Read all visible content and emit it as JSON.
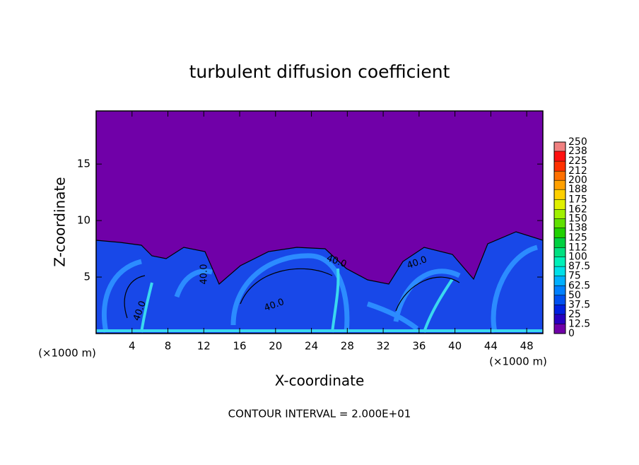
{
  "chart_data": {
    "type": "contour",
    "title": "turbulent diffusion coefficient",
    "xlabel": "X-coordinate",
    "ylabel": "Z-coordinate",
    "x_unit_left": "(×1000 m)",
    "x_unit_right": "(×1000 m)",
    "footer": "CONTOUR INTERVAL = 2.000E+01",
    "xlim": [
      0,
      49.8
    ],
    "xticks": [
      4,
      8,
      12,
      16,
      20,
      24,
      28,
      32,
      36,
      40,
      44,
      48
    ],
    "ylim": [
      0,
      19.7
    ],
    "yticks": [
      5,
      10,
      15
    ],
    "contour_labels": [
      "40.0",
      "40.0",
      "40.0",
      "40.0",
      "40.0"
    ],
    "colorbar": {
      "clim": [
        0,
        250
      ],
      "levels": [
        0,
        12.5,
        25,
        37.5,
        50,
        62.5,
        75,
        87.5,
        100,
        112,
        125,
        138,
        150,
        162,
        175,
        188,
        200,
        212,
        225,
        238,
        250
      ],
      "colors": [
        "#7000a8",
        "#2800c0",
        "#0020e0",
        "#0050f0",
        "#0080ff",
        "#00b0ff",
        "#00e0e8",
        "#00f0b8",
        "#00e080",
        "#00d040",
        "#20d000",
        "#60e000",
        "#a0f000",
        "#e0f000",
        "#ffd000",
        "#ffa000",
        "#ff7000",
        "#ff3000",
        "#ff1010",
        "#f08080"
      ]
    }
  }
}
